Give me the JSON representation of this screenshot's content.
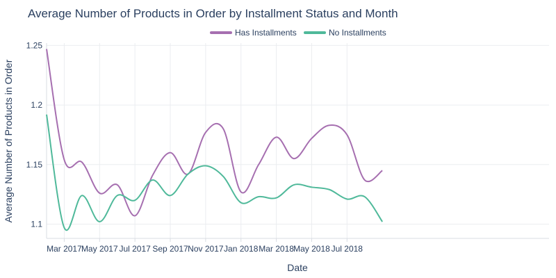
{
  "chart_data": {
    "type": "line",
    "title": "Average Number of Products in Order by Installment Status and Month",
    "xlabel": "Date",
    "ylabel": "Average Number of Products in Order",
    "x": [
      "2017-02",
      "2017-03",
      "2017-04",
      "2017-05",
      "2017-06",
      "2017-07",
      "2017-08",
      "2017-09",
      "2017-10",
      "2017-11",
      "2017-12",
      "2018-01",
      "2018-02",
      "2018-03",
      "2018-04",
      "2018-05",
      "2018-06",
      "2018-07",
      "2018-08",
      "2018-09"
    ],
    "x_tick_labels": [
      "Mar 2017",
      "May 2017",
      "Jul 2017",
      "Sep 2017",
      "Nov 2017",
      "Jan 2018",
      "Mar 2018",
      "May 2018",
      "Jul 2018"
    ],
    "x_tick_positions": [
      "2017-03",
      "2017-05",
      "2017-07",
      "2017-09",
      "2017-11",
      "2018-01",
      "2018-03",
      "2018-05",
      "2018-07"
    ],
    "ylim": [
      1.088,
      1.252
    ],
    "y_ticks": [
      1.1,
      1.15,
      1.2,
      1.25
    ],
    "y_tick_labels": [
      "1.1",
      "1.15",
      "1.2",
      "1.25"
    ],
    "grid": true,
    "legend_position": "top-center",
    "series": [
      {
        "name": "Has Installments",
        "color": "#a66fb0",
        "values": [
          1.247,
          1.154,
          1.152,
          1.126,
          1.133,
          1.107,
          1.141,
          1.16,
          1.142,
          1.177,
          1.18,
          1.127,
          1.15,
          1.173,
          1.155,
          1.172,
          1.183,
          1.175,
          1.137,
          1.145
        ]
      },
      {
        "name": "No Installments",
        "color": "#4fb99a",
        "values": [
          1.192,
          1.097,
          1.124,
          1.102,
          1.124,
          1.12,
          1.137,
          1.124,
          1.142,
          1.149,
          1.14,
          1.118,
          1.123,
          1.122,
          1.133,
          1.131,
          1.129,
          1.121,
          1.123,
          1.102
        ]
      }
    ]
  }
}
